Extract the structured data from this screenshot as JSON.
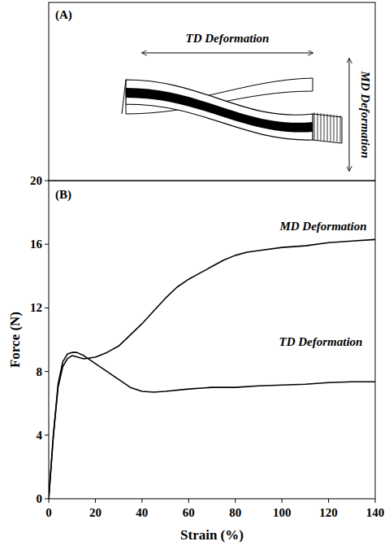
{
  "diagram": {
    "panel_label": "(A)",
    "horizontal_arrow_label": "TD Deformation",
    "vertical_arrow_label": "MD Deformation"
  },
  "chart_data": {
    "type": "line",
    "panel_label": "(B)",
    "x_label": "Strain (%)",
    "y_label": "Force (N)",
    "xlim": [
      0,
      140
    ],
    "ylim": [
      0,
      20
    ],
    "xticks": [
      0,
      20,
      40,
      60,
      80,
      100,
      120,
      140
    ],
    "yticks": [
      0,
      4,
      8,
      12,
      16,
      20
    ],
    "grid": false,
    "series": [
      {
        "name": "MD Deformation",
        "color": "#000000",
        "x": [
          0,
          2,
          4,
          6,
          8,
          10,
          15,
          20,
          25,
          30,
          35,
          40,
          45,
          50,
          55,
          60,
          65,
          70,
          75,
          80,
          85,
          90,
          100,
          110,
          120,
          130,
          140
        ],
        "values": [
          0,
          4,
          7,
          8.3,
          8.8,
          9,
          8.8,
          8.9,
          9.2,
          9.6,
          10.3,
          11,
          11.8,
          12.6,
          13.3,
          13.8,
          14.2,
          14.6,
          15,
          15.3,
          15.5,
          15.6,
          15.8,
          15.9,
          16.1,
          16.2,
          16.3
        ]
      },
      {
        "name": "TD Deformation",
        "color": "#000000",
        "x": [
          0,
          2,
          4,
          6,
          8,
          10,
          12,
          15,
          20,
          25,
          30,
          35,
          40,
          45,
          50,
          60,
          70,
          80,
          90,
          100,
          110,
          120,
          130,
          140
        ],
        "values": [
          0,
          4,
          7.2,
          8.6,
          9.1,
          9.2,
          9.2,
          9,
          8.5,
          8,
          7.5,
          7,
          6.75,
          6.7,
          6.75,
          6.9,
          7,
          7,
          7.1,
          7.15,
          7.2,
          7.3,
          7.35,
          7.35
        ]
      }
    ]
  }
}
